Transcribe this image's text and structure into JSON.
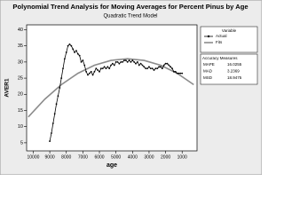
{
  "chart_data": {
    "type": "line",
    "title": "Polynomial Trend Analysis for Moving Averages for Percent Pinus by Age",
    "subtitle": "Quadratic Trend Model",
    "x_label": "age",
    "y_label": "AVER1",
    "xlim": [
      10400,
      100
    ],
    "ylim": [
      2.5,
      41.5
    ],
    "xticks": [
      10000,
      9000,
      8000,
      7000,
      6000,
      5000,
      4000,
      3000,
      2000,
      1000
    ],
    "yticks": [
      5,
      10,
      15,
      20,
      25,
      30,
      35,
      40
    ],
    "legend_title": "Variable",
    "series": [
      {
        "name": "Actual",
        "color": "#000000",
        "x": [
          9000,
          8900,
          8800,
          8700,
          8600,
          8500,
          8400,
          8300,
          8200,
          8100,
          8000,
          7900,
          7800,
          7700,
          7600,
          7500,
          7400,
          7300,
          7200,
          7100,
          7000,
          6900,
          6800,
          6700,
          6600,
          6500,
          6400,
          6300,
          6200,
          6100,
          6000,
          5900,
          5800,
          5700,
          5600,
          5500,
          5400,
          5300,
          5200,
          5100,
          5000,
          4900,
          4800,
          4700,
          4600,
          4500,
          4400,
          4300,
          4200,
          4100,
          4000,
          3900,
          3800,
          3700,
          3600,
          3500,
          3400,
          3300,
          3200,
          3100,
          3000,
          2900,
          2800,
          2700,
          2600,
          2500,
          2400,
          2300,
          2200,
          2100,
          2000,
          1900,
          1800,
          1700,
          1600,
          1500,
          1400,
          1300,
          1200,
          1100,
          1000
        ],
        "values": [
          5.5,
          8,
          11,
          14,
          17,
          19.5,
          22,
          25,
          28,
          31,
          33,
          35,
          35.5,
          35,
          34,
          33,
          33.5,
          32.5,
          32,
          30,
          30.5,
          29,
          27,
          26,
          26.5,
          27,
          26,
          27,
          28,
          27.5,
          27,
          28,
          28,
          28.5,
          28,
          28.5,
          28,
          29,
          29.5,
          29,
          30,
          30,
          29.5,
          30,
          30,
          30.5,
          30.5,
          30,
          30.5,
          30,
          30.5,
          30,
          29.5,
          30,
          29,
          29.5,
          29,
          28.5,
          28,
          28,
          28.5,
          28,
          28,
          27.5,
          28,
          28,
          28.5,
          28.5,
          28,
          29,
          29.5,
          29.5,
          29,
          28.5,
          28,
          27,
          27,
          26.5,
          26.5,
          26.5,
          26.5
        ]
      },
      {
        "name": "Fits",
        "color": "#8c8c8c",
        "x": [
          10300,
          9300,
          8300,
          7300,
          6300,
          5300,
          4300,
          3300,
          2300,
          1300,
          300
        ],
        "values": [
          13,
          18.5,
          23,
          26.5,
          29,
          30.5,
          31,
          30.5,
          29,
          26.5,
          23
        ]
      }
    ],
    "accuracy": {
      "title": "Accuracy Measures",
      "rows": [
        [
          "MAPE",
          "16.0255"
        ],
        [
          "MAD",
          "3.2369"
        ],
        [
          "MSD",
          "18.9475"
        ]
      ]
    }
  }
}
